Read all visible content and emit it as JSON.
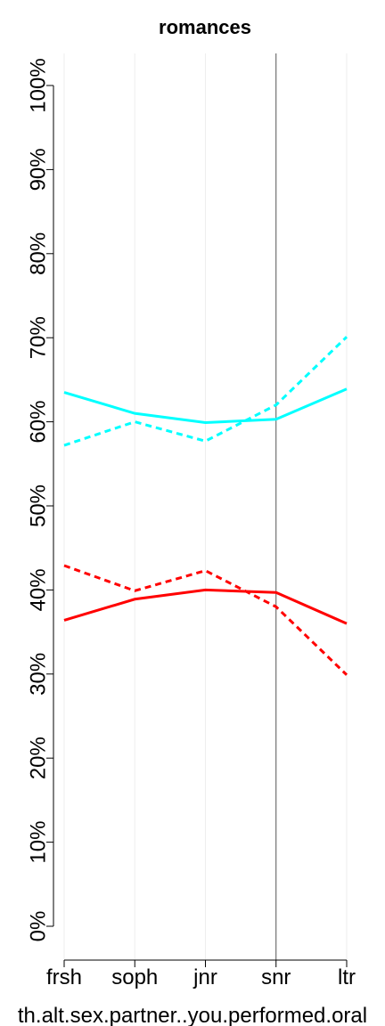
{
  "chart_data": {
    "type": "line",
    "title": "romances",
    "xlabel": "th.alt.sex.partner..you.performed.oral",
    "categories": [
      "frsh",
      "soph",
      "jnr",
      "snr",
      "ltr"
    ],
    "highlight": "snr",
    "grid": true,
    "series": [
      {
        "color": "#00ffff",
        "dashed": false,
        "values": [
          63.5,
          61.0,
          59.9,
          60.3,
          63.9
        ]
      },
      {
        "color": "#00ffff",
        "dashed": true,
        "values": [
          57.2,
          60.0,
          57.7,
          62.0,
          70.1
        ]
      },
      {
        "color": "#ff0000",
        "dashed": false,
        "values": [
          36.4,
          38.9,
          40.0,
          39.7,
          36.0
        ]
      },
      {
        "color": "#ff0000",
        "dashed": true,
        "values": [
          42.9,
          39.9,
          42.3,
          38.0,
          29.9
        ]
      }
    ],
    "ylim": [
      0,
      100
    ],
    "yticks": [
      {
        "value": 0,
        "label": "0%"
      },
      {
        "value": 10,
        "label": "10%"
      },
      {
        "value": 20,
        "label": "20%"
      },
      {
        "value": 30,
        "label": "30%"
      },
      {
        "value": 40,
        "label": "40%"
      },
      {
        "value": 50,
        "label": "50%"
      },
      {
        "value": 60,
        "label": "60%"
      },
      {
        "value": 70,
        "label": "70%"
      },
      {
        "value": 80,
        "label": "80%"
      },
      {
        "value": 90,
        "label": "90%"
      },
      {
        "value": 100,
        "label": "100%"
      }
    ]
  }
}
